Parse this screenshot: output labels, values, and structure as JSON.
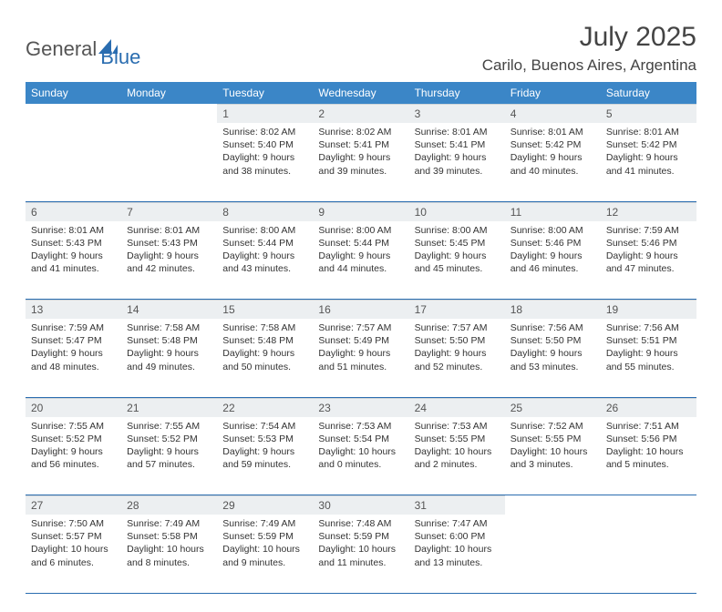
{
  "logo": {
    "text_general": "General",
    "text_blue": "Blue"
  },
  "title": "July 2025",
  "location": "Carilo, Buenos Aires, Argentina",
  "colors": {
    "header_bg": "#3b86c7",
    "header_text": "#ffffff",
    "daynum_bg": "#eceff1",
    "row_border": "#2a6db0",
    "logo_gray": "#555555",
    "logo_blue": "#2a6db0",
    "body_text": "#333333",
    "page_bg": "#ffffff"
  },
  "day_headers": [
    "Sunday",
    "Monday",
    "Tuesday",
    "Wednesday",
    "Thursday",
    "Friday",
    "Saturday"
  ],
  "weeks": [
    [
      null,
      null,
      {
        "n": "1",
        "sr": "Sunrise: 8:02 AM",
        "ss": "Sunset: 5:40 PM",
        "dl": "Daylight: 9 hours and 38 minutes."
      },
      {
        "n": "2",
        "sr": "Sunrise: 8:02 AM",
        "ss": "Sunset: 5:41 PM",
        "dl": "Daylight: 9 hours and 39 minutes."
      },
      {
        "n": "3",
        "sr": "Sunrise: 8:01 AM",
        "ss": "Sunset: 5:41 PM",
        "dl": "Daylight: 9 hours and 39 minutes."
      },
      {
        "n": "4",
        "sr": "Sunrise: 8:01 AM",
        "ss": "Sunset: 5:42 PM",
        "dl": "Daylight: 9 hours and 40 minutes."
      },
      {
        "n": "5",
        "sr": "Sunrise: 8:01 AM",
        "ss": "Sunset: 5:42 PM",
        "dl": "Daylight: 9 hours and 41 minutes."
      }
    ],
    [
      {
        "n": "6",
        "sr": "Sunrise: 8:01 AM",
        "ss": "Sunset: 5:43 PM",
        "dl": "Daylight: 9 hours and 41 minutes."
      },
      {
        "n": "7",
        "sr": "Sunrise: 8:01 AM",
        "ss": "Sunset: 5:43 PM",
        "dl": "Daylight: 9 hours and 42 minutes."
      },
      {
        "n": "8",
        "sr": "Sunrise: 8:00 AM",
        "ss": "Sunset: 5:44 PM",
        "dl": "Daylight: 9 hours and 43 minutes."
      },
      {
        "n": "9",
        "sr": "Sunrise: 8:00 AM",
        "ss": "Sunset: 5:44 PM",
        "dl": "Daylight: 9 hours and 44 minutes."
      },
      {
        "n": "10",
        "sr": "Sunrise: 8:00 AM",
        "ss": "Sunset: 5:45 PM",
        "dl": "Daylight: 9 hours and 45 minutes."
      },
      {
        "n": "11",
        "sr": "Sunrise: 8:00 AM",
        "ss": "Sunset: 5:46 PM",
        "dl": "Daylight: 9 hours and 46 minutes."
      },
      {
        "n": "12",
        "sr": "Sunrise: 7:59 AM",
        "ss": "Sunset: 5:46 PM",
        "dl": "Daylight: 9 hours and 47 minutes."
      }
    ],
    [
      {
        "n": "13",
        "sr": "Sunrise: 7:59 AM",
        "ss": "Sunset: 5:47 PM",
        "dl": "Daylight: 9 hours and 48 minutes."
      },
      {
        "n": "14",
        "sr": "Sunrise: 7:58 AM",
        "ss": "Sunset: 5:48 PM",
        "dl": "Daylight: 9 hours and 49 minutes."
      },
      {
        "n": "15",
        "sr": "Sunrise: 7:58 AM",
        "ss": "Sunset: 5:48 PM",
        "dl": "Daylight: 9 hours and 50 minutes."
      },
      {
        "n": "16",
        "sr": "Sunrise: 7:57 AM",
        "ss": "Sunset: 5:49 PM",
        "dl": "Daylight: 9 hours and 51 minutes."
      },
      {
        "n": "17",
        "sr": "Sunrise: 7:57 AM",
        "ss": "Sunset: 5:50 PM",
        "dl": "Daylight: 9 hours and 52 minutes."
      },
      {
        "n": "18",
        "sr": "Sunrise: 7:56 AM",
        "ss": "Sunset: 5:50 PM",
        "dl": "Daylight: 9 hours and 53 minutes."
      },
      {
        "n": "19",
        "sr": "Sunrise: 7:56 AM",
        "ss": "Sunset: 5:51 PM",
        "dl": "Daylight: 9 hours and 55 minutes."
      }
    ],
    [
      {
        "n": "20",
        "sr": "Sunrise: 7:55 AM",
        "ss": "Sunset: 5:52 PM",
        "dl": "Daylight: 9 hours and 56 minutes."
      },
      {
        "n": "21",
        "sr": "Sunrise: 7:55 AM",
        "ss": "Sunset: 5:52 PM",
        "dl": "Daylight: 9 hours and 57 minutes."
      },
      {
        "n": "22",
        "sr": "Sunrise: 7:54 AM",
        "ss": "Sunset: 5:53 PM",
        "dl": "Daylight: 9 hours and 59 minutes."
      },
      {
        "n": "23",
        "sr": "Sunrise: 7:53 AM",
        "ss": "Sunset: 5:54 PM",
        "dl": "Daylight: 10 hours and 0 minutes."
      },
      {
        "n": "24",
        "sr": "Sunrise: 7:53 AM",
        "ss": "Sunset: 5:55 PM",
        "dl": "Daylight: 10 hours and 2 minutes."
      },
      {
        "n": "25",
        "sr": "Sunrise: 7:52 AM",
        "ss": "Sunset: 5:55 PM",
        "dl": "Daylight: 10 hours and 3 minutes."
      },
      {
        "n": "26",
        "sr": "Sunrise: 7:51 AM",
        "ss": "Sunset: 5:56 PM",
        "dl": "Daylight: 10 hours and 5 minutes."
      }
    ],
    [
      {
        "n": "27",
        "sr": "Sunrise: 7:50 AM",
        "ss": "Sunset: 5:57 PM",
        "dl": "Daylight: 10 hours and 6 minutes."
      },
      {
        "n": "28",
        "sr": "Sunrise: 7:49 AM",
        "ss": "Sunset: 5:58 PM",
        "dl": "Daylight: 10 hours and 8 minutes."
      },
      {
        "n": "29",
        "sr": "Sunrise: 7:49 AM",
        "ss": "Sunset: 5:59 PM",
        "dl": "Daylight: 10 hours and 9 minutes."
      },
      {
        "n": "30",
        "sr": "Sunrise: 7:48 AM",
        "ss": "Sunset: 5:59 PM",
        "dl": "Daylight: 10 hours and 11 minutes."
      },
      {
        "n": "31",
        "sr": "Sunrise: 7:47 AM",
        "ss": "Sunset: 6:00 PM",
        "dl": "Daylight: 10 hours and 13 minutes."
      },
      null,
      null
    ]
  ]
}
